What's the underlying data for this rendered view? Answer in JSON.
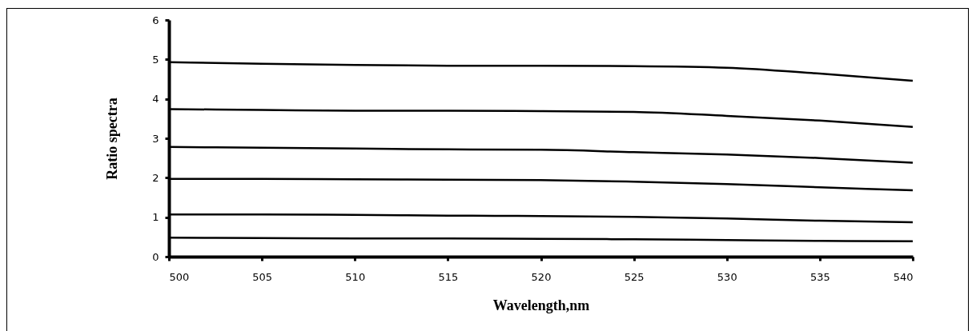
{
  "chart_data": {
    "type": "line",
    "xlabel": "Wavelength,nm",
    "ylabel": "Ratio spectra",
    "x": [
      500,
      505,
      510,
      515,
      520,
      525,
      530,
      535,
      540
    ],
    "series": [
      {
        "color": "#000000",
        "values": [
          4.93,
          4.89,
          4.86,
          4.84,
          4.84,
          4.83,
          4.79,
          4.64,
          4.46
        ]
      },
      {
        "color": "#000000",
        "values": [
          3.74,
          3.72,
          3.7,
          3.7,
          3.69,
          3.67,
          3.57,
          3.45,
          3.29
        ]
      },
      {
        "color": "#000000",
        "values": [
          2.78,
          2.76,
          2.74,
          2.72,
          2.71,
          2.65,
          2.59,
          2.5,
          2.38
        ]
      },
      {
        "color": "#000000",
        "values": [
          1.97,
          1.97,
          1.96,
          1.95,
          1.94,
          1.9,
          1.84,
          1.76,
          1.68
        ]
      },
      {
        "color": "#000000",
        "values": [
          1.07,
          1.07,
          1.06,
          1.04,
          1.03,
          1.01,
          0.97,
          0.91,
          0.87
        ]
      },
      {
        "color": "#000000",
        "values": [
          0.48,
          0.47,
          0.46,
          0.46,
          0.45,
          0.44,
          0.42,
          0.4,
          0.39
        ]
      }
    ],
    "xlim": [
      500,
      540
    ],
    "xticks": [
      500,
      505,
      510,
      515,
      520,
      525,
      530,
      535,
      540
    ],
    "ylim": [
      0,
      6
    ],
    "yticks": [
      0,
      1,
      2,
      3,
      4,
      5,
      6
    ],
    "grid": false,
    "legend": false,
    "marker": "none",
    "line_style": "solid"
  }
}
